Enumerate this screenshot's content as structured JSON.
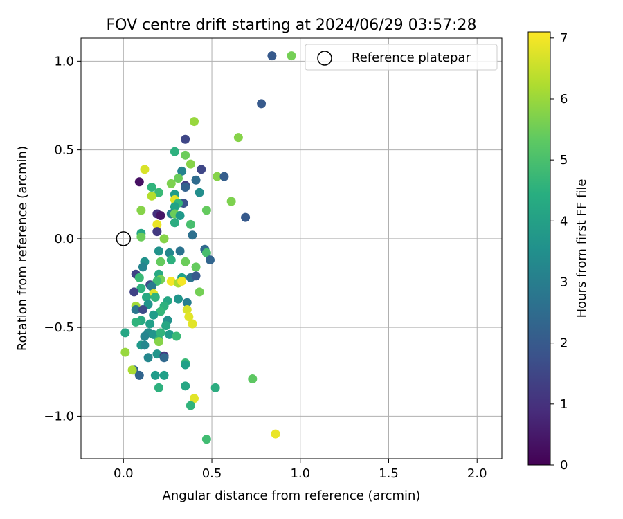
{
  "chart_data": {
    "type": "scatter",
    "title": "FOV centre drift starting at 2024/06/29 03:57:28",
    "xlabel": "Angular distance from reference (arcmin)",
    "ylabel": "Rotation from reference (arcmin)",
    "xlim": [
      -0.24,
      2.14
    ],
    "ylim": [
      -1.24,
      1.13
    ],
    "xticks": [
      0.0,
      0.5,
      1.0,
      1.5,
      2.0
    ],
    "xtick_labels": [
      "0.0",
      "0.5",
      "1.0",
      "1.5",
      "2.0"
    ],
    "yticks": [
      -1.0,
      -0.5,
      0.0,
      0.5,
      1.0
    ],
    "ytick_labels": [
      "−1.0",
      "−0.5",
      "0.0",
      "0.5",
      "1.0"
    ],
    "grid": true,
    "legend": {
      "placement": "top-right",
      "entries": [
        "Reference platepar"
      ]
    },
    "reference_point": {
      "x": 0.0,
      "y": 0.0,
      "label": "Reference platepar"
    },
    "colorbar": {
      "label": "Hours from first FF file",
      "range": [
        0,
        7.1
      ],
      "ticks": [
        0,
        1,
        2,
        3,
        4,
        5,
        6,
        7
      ],
      "tick_labels": [
        "0",
        "1",
        "2",
        "3",
        "4",
        "5",
        "6",
        "7"
      ],
      "colormap": "viridis"
    },
    "points": [
      {
        "x": 0.84,
        "y": 1.03,
        "h": 2.0
      },
      {
        "x": 0.95,
        "y": 1.03,
        "h": 5.6
      },
      {
        "x": 0.78,
        "y": 0.76,
        "h": 2.0
      },
      {
        "x": 0.4,
        "y": 0.66,
        "h": 6.0
      },
      {
        "x": 0.65,
        "y": 0.57,
        "h": 5.8
      },
      {
        "x": 0.35,
        "y": 0.56,
        "h": 1.5
      },
      {
        "x": 0.29,
        "y": 0.49,
        "h": 4.5
      },
      {
        "x": 0.35,
        "y": 0.47,
        "h": 5.5
      },
      {
        "x": 0.38,
        "y": 0.42,
        "h": 5.8
      },
      {
        "x": 0.33,
        "y": 0.38,
        "h": 3.2
      },
      {
        "x": 0.44,
        "y": 0.39,
        "h": 1.5
      },
      {
        "x": 0.12,
        "y": 0.39,
        "h": 6.7
      },
      {
        "x": 0.31,
        "y": 0.34,
        "h": 5.5
      },
      {
        "x": 0.53,
        "y": 0.35,
        "h": 5.8
      },
      {
        "x": 0.57,
        "y": 0.35,
        "h": 2.1
      },
      {
        "x": 0.09,
        "y": 0.32,
        "h": 0.3
      },
      {
        "x": 0.41,
        "y": 0.33,
        "h": 2.5
      },
      {
        "x": 0.27,
        "y": 0.31,
        "h": 5.7
      },
      {
        "x": 0.35,
        "y": 0.3,
        "h": 1.3
      },
      {
        "x": 0.35,
        "y": 0.29,
        "h": 2.2
      },
      {
        "x": 0.16,
        "y": 0.29,
        "h": 4.6
      },
      {
        "x": 0.2,
        "y": 0.26,
        "h": 4.8
      },
      {
        "x": 0.29,
        "y": 0.25,
        "h": 3.9
      },
      {
        "x": 0.43,
        "y": 0.26,
        "h": 3.5
      },
      {
        "x": 0.16,
        "y": 0.24,
        "h": 6.3
      },
      {
        "x": 0.61,
        "y": 0.21,
        "h": 5.7
      },
      {
        "x": 0.29,
        "y": 0.22,
        "h": 6.8
      },
      {
        "x": 0.34,
        "y": 0.2,
        "h": 1.8
      },
      {
        "x": 0.31,
        "y": 0.2,
        "h": 4.7
      },
      {
        "x": 0.29,
        "y": 0.18,
        "h": 4.1
      },
      {
        "x": 0.1,
        "y": 0.16,
        "h": 5.8
      },
      {
        "x": 0.47,
        "y": 0.16,
        "h": 5.4
      },
      {
        "x": 0.19,
        "y": 0.14,
        "h": 1.0
      },
      {
        "x": 0.21,
        "y": 0.13,
        "h": 0.4
      },
      {
        "x": 0.27,
        "y": 0.14,
        "h": 3.0
      },
      {
        "x": 0.29,
        "y": 0.14,
        "h": 5.5
      },
      {
        "x": 0.32,
        "y": 0.13,
        "h": 3.8
      },
      {
        "x": 0.69,
        "y": 0.12,
        "h": 2.0
      },
      {
        "x": 0.29,
        "y": 0.09,
        "h": 4.4
      },
      {
        "x": 0.38,
        "y": 0.08,
        "h": 5.0
      },
      {
        "x": 0.19,
        "y": 0.08,
        "h": 6.9
      },
      {
        "x": 0.19,
        "y": 0.04,
        "h": 1.2
      },
      {
        "x": 0.1,
        "y": 0.03,
        "h": 4.2
      },
      {
        "x": 0.39,
        "y": 0.02,
        "h": 2.6
      },
      {
        "x": 0.1,
        "y": 0.01,
        "h": 5.5
      },
      {
        "x": 0.23,
        "y": 0.0,
        "h": 5.8
      },
      {
        "x": 0.2,
        "y": -0.07,
        "h": 3.6
      },
      {
        "x": 0.26,
        "y": -0.08,
        "h": 3.3
      },
      {
        "x": 0.32,
        "y": -0.07,
        "h": 2.7
      },
      {
        "x": 0.46,
        "y": -0.06,
        "h": 2.4
      },
      {
        "x": 0.47,
        "y": -0.08,
        "h": 5.0
      },
      {
        "x": 0.49,
        "y": -0.12,
        "h": 2.3
      },
      {
        "x": 0.27,
        "y": -0.12,
        "h": 4.5
      },
      {
        "x": 0.12,
        "y": -0.13,
        "h": 3.6
      },
      {
        "x": 0.21,
        "y": -0.13,
        "h": 5.4
      },
      {
        "x": 0.35,
        "y": -0.13,
        "h": 5.5
      },
      {
        "x": 0.11,
        "y": -0.16,
        "h": 3.2
      },
      {
        "x": 0.41,
        "y": -0.16,
        "h": 5.4
      },
      {
        "x": 0.07,
        "y": -0.2,
        "h": 1.4
      },
      {
        "x": 0.2,
        "y": -0.2,
        "h": 4.3
      },
      {
        "x": 0.33,
        "y": -0.22,
        "h": 4.0
      },
      {
        "x": 0.38,
        "y": -0.22,
        "h": 2.7
      },
      {
        "x": 0.41,
        "y": -0.21,
        "h": 2.0
      },
      {
        "x": 0.09,
        "y": -0.22,
        "h": 4.8
      },
      {
        "x": 0.21,
        "y": -0.23,
        "h": 5.6
      },
      {
        "x": 0.19,
        "y": -0.24,
        "h": 4.9
      },
      {
        "x": 0.27,
        "y": -0.24,
        "h": 7.0
      },
      {
        "x": 0.31,
        "y": -0.25,
        "h": 6.2
      },
      {
        "x": 0.33,
        "y": -0.24,
        "h": 7.0
      },
      {
        "x": 0.15,
        "y": -0.26,
        "h": 1.6
      },
      {
        "x": 0.16,
        "y": -0.27,
        "h": 2.9
      },
      {
        "x": 0.1,
        "y": -0.28,
        "h": 4.5
      },
      {
        "x": 0.43,
        "y": -0.3,
        "h": 5.6
      },
      {
        "x": 0.06,
        "y": -0.3,
        "h": 1.4
      },
      {
        "x": 0.17,
        "y": -0.31,
        "h": 6.8
      },
      {
        "x": 0.13,
        "y": -0.33,
        "h": 4.3
      },
      {
        "x": 0.18,
        "y": -0.33,
        "h": 4.6
      },
      {
        "x": 0.31,
        "y": -0.34,
        "h": 3.7
      },
      {
        "x": 0.25,
        "y": -0.35,
        "h": 4.2
      },
      {
        "x": 0.14,
        "y": -0.37,
        "h": 3.7
      },
      {
        "x": 0.23,
        "y": -0.38,
        "h": 4.5
      },
      {
        "x": 0.36,
        "y": -0.36,
        "h": 3.0
      },
      {
        "x": 0.07,
        "y": -0.38,
        "h": 6.1
      },
      {
        "x": 0.07,
        "y": -0.4,
        "h": 2.8
      },
      {
        "x": 0.11,
        "y": -0.4,
        "h": 1.6
      },
      {
        "x": 0.21,
        "y": -0.41,
        "h": 4.7
      },
      {
        "x": 0.36,
        "y": -0.4,
        "h": 6.7
      },
      {
        "x": 0.17,
        "y": -0.43,
        "h": 3.9
      },
      {
        "x": 0.37,
        "y": -0.44,
        "h": 6.8
      },
      {
        "x": 0.25,
        "y": -0.46,
        "h": 3.6
      },
      {
        "x": 0.1,
        "y": -0.46,
        "h": 4.3
      },
      {
        "x": 0.07,
        "y": -0.47,
        "h": 4.6
      },
      {
        "x": 0.15,
        "y": -0.48,
        "h": 4.0
      },
      {
        "x": 0.24,
        "y": -0.49,
        "h": 4.2
      },
      {
        "x": 0.39,
        "y": -0.48,
        "h": 6.8
      },
      {
        "x": 0.01,
        "y": -0.53,
        "h": 4.2
      },
      {
        "x": 0.14,
        "y": -0.53,
        "h": 3.4
      },
      {
        "x": 0.17,
        "y": -0.54,
        "h": 3.7
      },
      {
        "x": 0.21,
        "y": -0.53,
        "h": 4.6
      },
      {
        "x": 0.26,
        "y": -0.54,
        "h": 3.9
      },
      {
        "x": 0.3,
        "y": -0.55,
        "h": 4.8
      },
      {
        "x": 0.12,
        "y": -0.55,
        "h": 3.2
      },
      {
        "x": 0.2,
        "y": -0.57,
        "h": 4.5
      },
      {
        "x": 0.2,
        "y": -0.58,
        "h": 5.8
      },
      {
        "x": 0.1,
        "y": -0.6,
        "h": 3.8
      },
      {
        "x": 0.12,
        "y": -0.6,
        "h": 3.3
      },
      {
        "x": 0.01,
        "y": -0.64,
        "h": 6.0
      },
      {
        "x": 0.19,
        "y": -0.65,
        "h": 3.7
      },
      {
        "x": 0.23,
        "y": -0.66,
        "h": 1.2
      },
      {
        "x": 0.14,
        "y": -0.67,
        "h": 3.3
      },
      {
        "x": 0.23,
        "y": -0.67,
        "h": 2.4
      },
      {
        "x": 0.35,
        "y": -0.7,
        "h": 4.8
      },
      {
        "x": 0.35,
        "y": -0.71,
        "h": 4.0
      },
      {
        "x": 0.06,
        "y": -0.74,
        "h": 2.2
      },
      {
        "x": 0.05,
        "y": -0.74,
        "h": 6.2
      },
      {
        "x": 0.09,
        "y": -0.77,
        "h": 2.3
      },
      {
        "x": 0.18,
        "y": -0.77,
        "h": 3.9
      },
      {
        "x": 0.23,
        "y": -0.77,
        "h": 4.0
      },
      {
        "x": 0.73,
        "y": -0.79,
        "h": 5.3
      },
      {
        "x": 0.35,
        "y": -0.83,
        "h": 4.2
      },
      {
        "x": 0.52,
        "y": -0.84,
        "h": 4.4
      },
      {
        "x": 0.2,
        "y": -0.84,
        "h": 4.5
      },
      {
        "x": 0.4,
        "y": -0.9,
        "h": 6.8
      },
      {
        "x": 0.38,
        "y": -0.94,
        "h": 4.6
      },
      {
        "x": 0.86,
        "y": -1.1,
        "h": 6.9
      },
      {
        "x": 0.47,
        "y": -1.13,
        "h": 4.9
      }
    ]
  }
}
